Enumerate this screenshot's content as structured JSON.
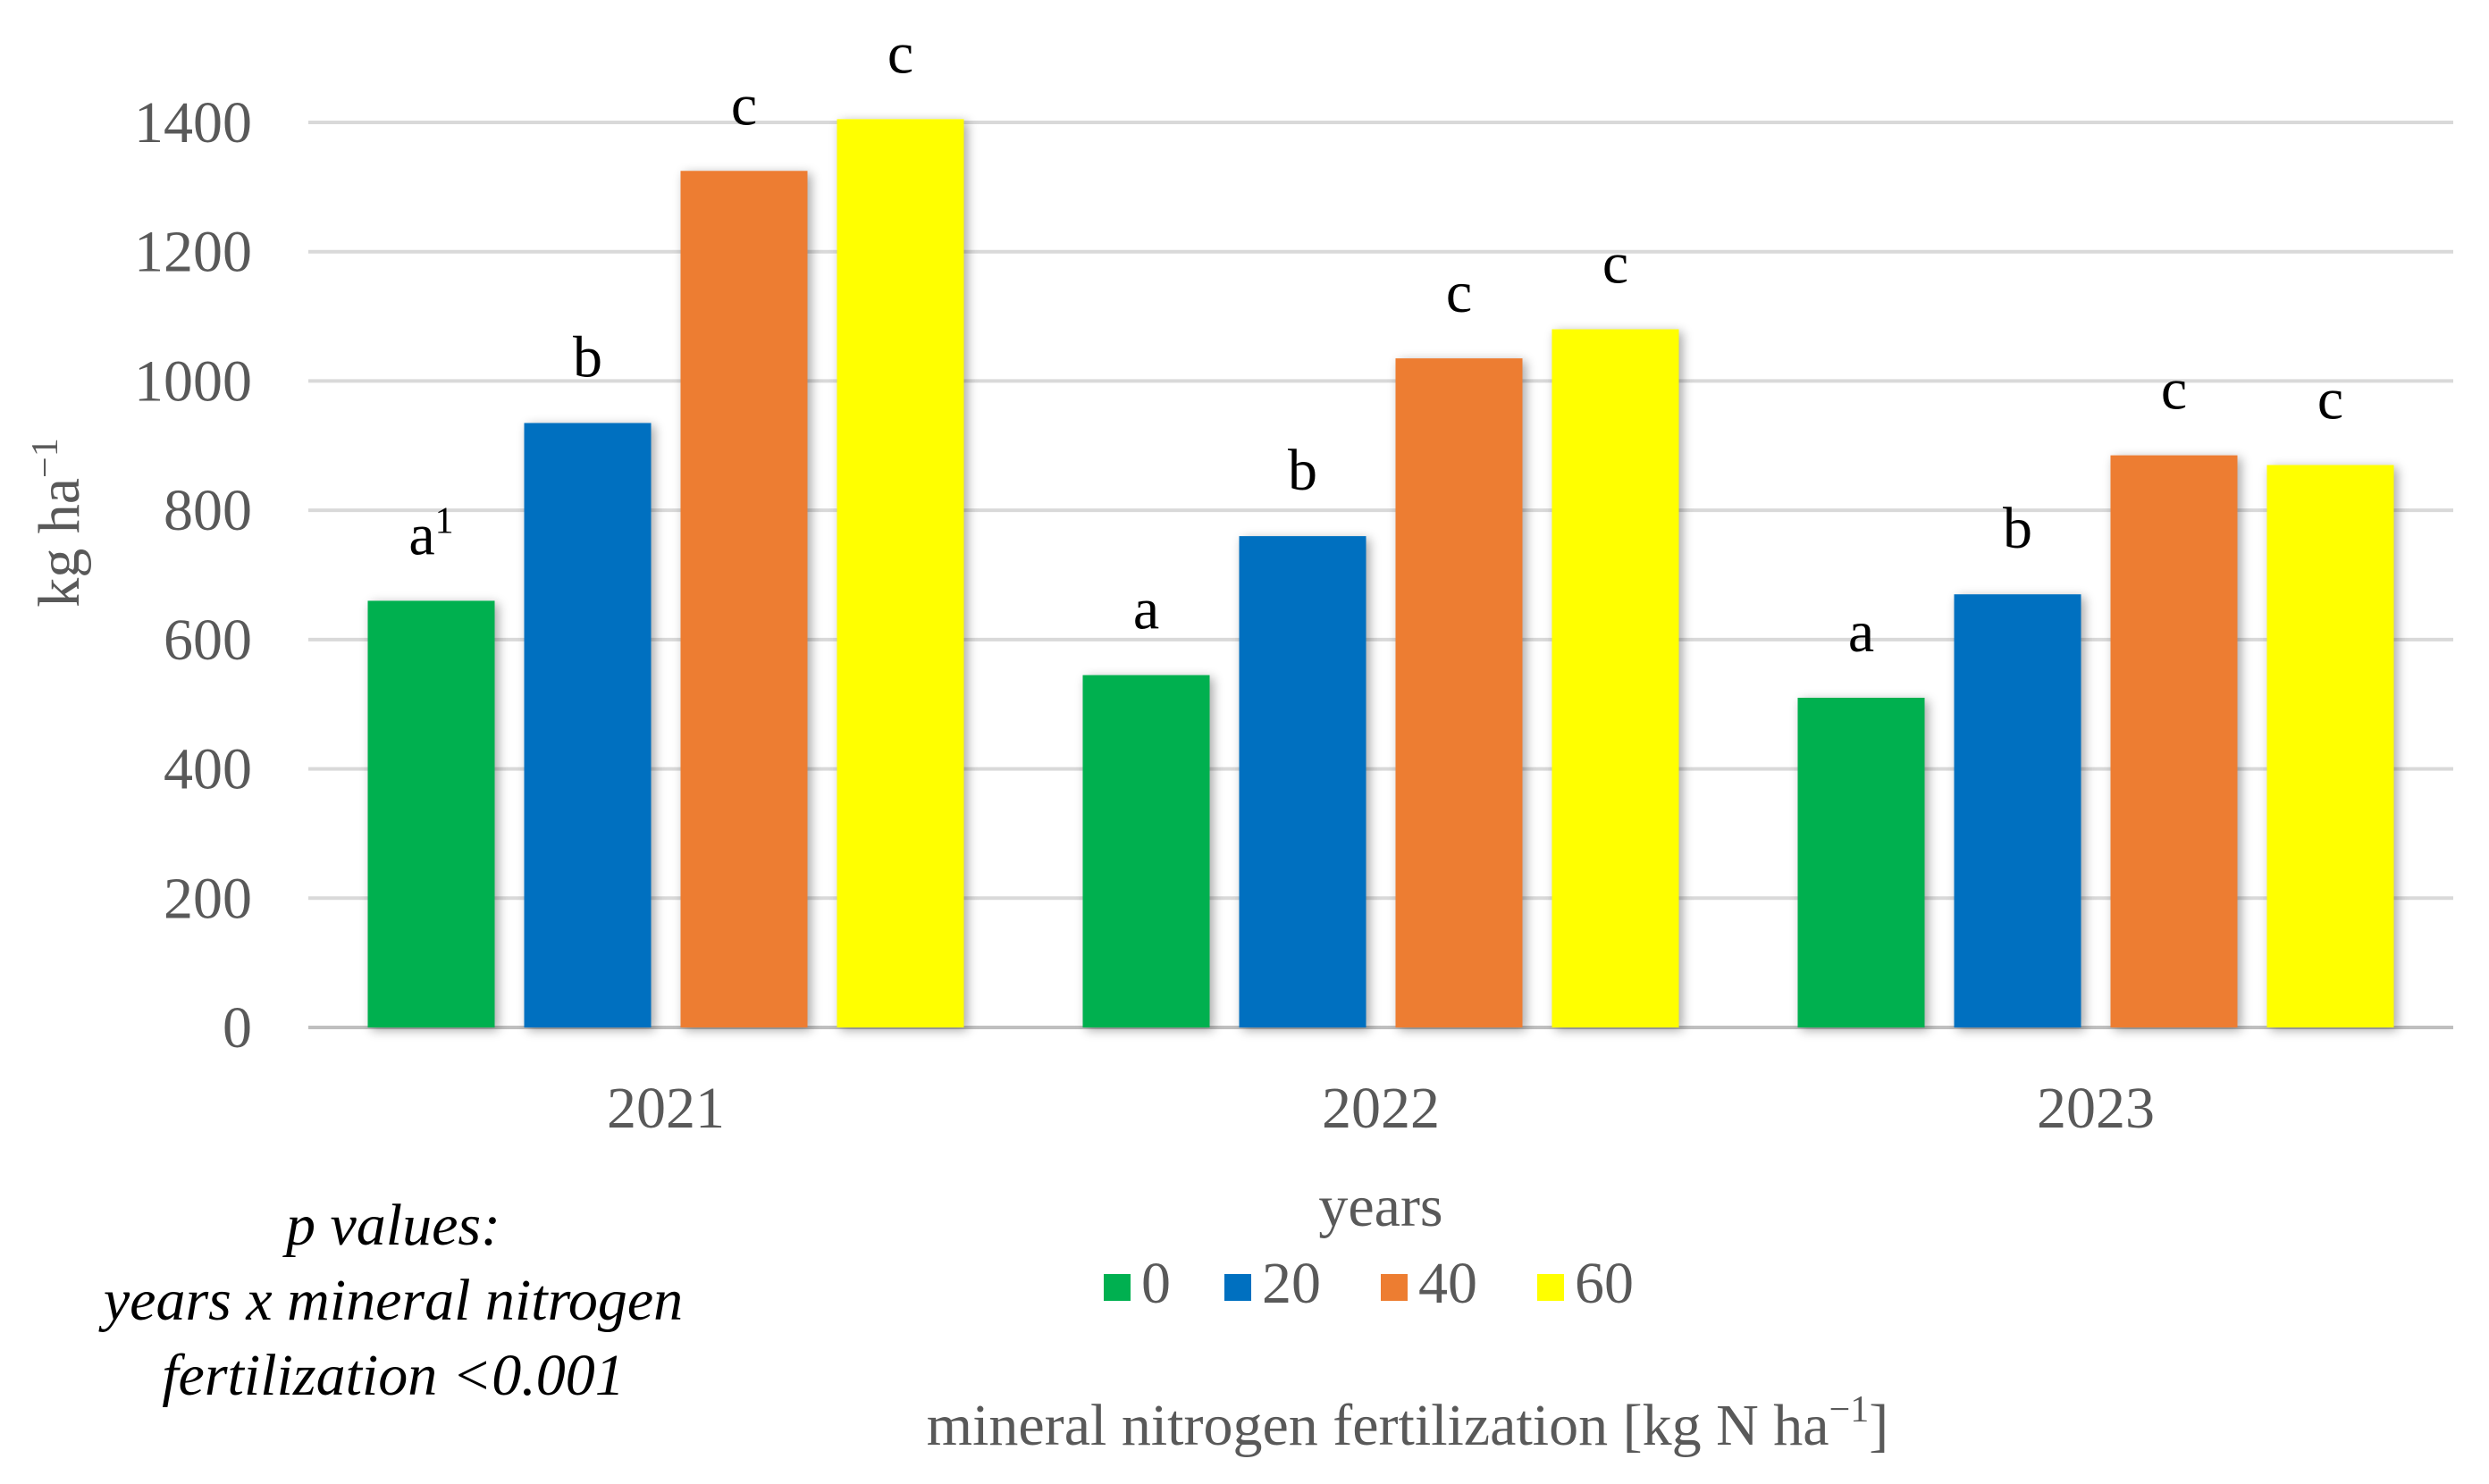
{
  "chart_data": {
    "type": "bar",
    "title": "",
    "ylabel": "kg ha",
    "ylabel_superscript": "−1",
    "xlabel": "years",
    "ylim": [
      0,
      1400
    ],
    "yticks": [
      "0",
      "200",
      "400",
      "600",
      "800",
      "1000",
      "1200",
      "1400"
    ],
    "ytick_values": [
      0,
      200,
      400,
      600,
      800,
      1000,
      1200,
      1400
    ],
    "grid": true,
    "categories": [
      "2021",
      "2022",
      "2023"
    ],
    "series": [
      {
        "name": "0",
        "color": "#00B050",
        "values": [
          660,
          545,
          510
        ],
        "labels": [
          "a",
          "a",
          "a"
        ]
      },
      {
        "name": "20",
        "color": "#0070C0",
        "values": [
          935,
          760,
          670
        ],
        "labels": [
          "b",
          "b",
          "b"
        ]
      },
      {
        "name": "40",
        "color": "#ED7D31",
        "values": [
          1325,
          1035,
          885
        ],
        "labels": [
          "c",
          "c",
          "c"
        ]
      },
      {
        "name": "60",
        "color": "#FFFF00",
        "values": [
          1405,
          1080,
          870
        ],
        "labels": [
          "c",
          "c",
          "c"
        ]
      }
    ],
    "first_label_superscript": "1",
    "legend_title": "mineral nitrogen fertilization [kg N ha",
    "legend_title_superscript": "−1",
    "legend_title_end": "]",
    "legend_position": "bottom-center"
  },
  "annotation": {
    "line1": "p values:",
    "line2": "years x mineral nitrogen",
    "line3": "fertilization <0.001"
  },
  "colors": {
    "grid": "#D9D9D9",
    "axis": "#BFBFBF",
    "tick_text": "#595959",
    "label_text": "#000000"
  }
}
